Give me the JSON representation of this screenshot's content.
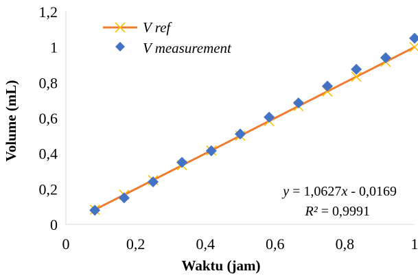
{
  "chart_data": {
    "type": "scatter",
    "xlabel": "Waktu (jam)",
    "ylabel": "Volume (mL)",
    "xlim": [
      0,
      1
    ],
    "ylim": [
      0,
      1.2
    ],
    "x_ticks": [
      "0",
      "0,2",
      "0,4",
      "0,6",
      "0,8",
      "1"
    ],
    "y_ticks": [
      "0",
      "0,2",
      "0,4",
      "0,6",
      "0,8",
      "1",
      "1,2"
    ],
    "x_tick_values": [
      0,
      0.2,
      0.4,
      0.6,
      0.8,
      1
    ],
    "y_tick_values": [
      0,
      0.2,
      0.4,
      0.6,
      0.8,
      1,
      1.2
    ],
    "grid": false,
    "legend_position": "top-left",
    "series": [
      {
        "name": "V ref",
        "style": "line-with-x-markers",
        "color": "#ED7D31",
        "marker_color": "#FFC000",
        "x": [
          0.083,
          0.167,
          0.25,
          0.333,
          0.417,
          0.5,
          0.583,
          0.667,
          0.75,
          0.833,
          0.917,
          1.0
        ],
        "y": [
          0.083,
          0.167,
          0.25,
          0.333,
          0.417,
          0.5,
          0.583,
          0.667,
          0.75,
          0.833,
          0.917,
          1.0
        ]
      },
      {
        "name": "V measurement",
        "style": "diamond-markers",
        "color": "#4472C4",
        "x": [
          0.083,
          0.167,
          0.25,
          0.333,
          0.417,
          0.5,
          0.583,
          0.667,
          0.75,
          0.833,
          0.917,
          1.0
        ],
        "y": [
          0.08,
          0.15,
          0.24,
          0.35,
          0.415,
          0.51,
          0.605,
          0.685,
          0.78,
          0.875,
          0.94,
          1.05
        ]
      }
    ],
    "annotations": {
      "equation_prefix": "y",
      "equation_mid": " = 1,0627",
      "equation_var": "x",
      "equation_suffix": " - 0,0169",
      "r2_prefix": "R²",
      "r2_value": " = 0,9991"
    }
  }
}
